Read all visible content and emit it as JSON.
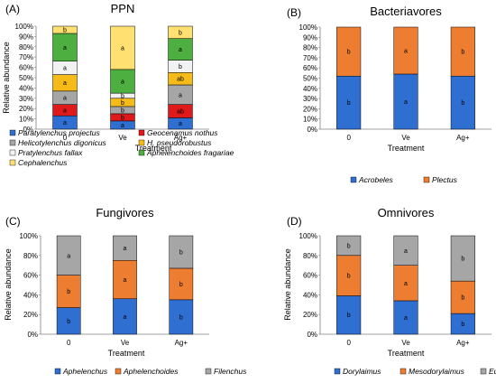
{
  "chart_data": [
    {
      "id": "A",
      "panel_label": "(A)",
      "title": "PPN",
      "type": "bar",
      "stacked": true,
      "categories": [
        "0",
        "Ve",
        "Ag+"
      ],
      "xlabel": "Treatment",
      "ylabel": "Relative abundance",
      "ylim": [
        0,
        100
      ],
      "y_ticks": [
        "0%",
        "10%",
        "20%",
        "30%",
        "40%",
        "50%",
        "60%",
        "70%",
        "80%",
        "90%",
        "100%"
      ],
      "legend": "bottom",
      "series": [
        {
          "name": "Paratylenchus projectus",
          "color": "#2f6fd1",
          "values": [
            13,
            8,
            11
          ],
          "labels": [
            "a",
            "a",
            "a"
          ]
        },
        {
          "name": "Geocenamus  nothus",
          "color": "#e0191b",
          "values": [
            11,
            7,
            13
          ],
          "labels": [
            "a",
            "b",
            "ab"
          ]
        },
        {
          "name": "Helicotylenchus digonicus",
          "color": "#a6a6a6",
          "values": [
            13,
            7,
            19
          ],
          "labels": [
            "a",
            "b",
            "a"
          ]
        },
        {
          "name": "H. pseudorobustus",
          "color": "#f6bb19",
          "values": [
            16,
            8,
            12
          ],
          "labels": [
            "a",
            "b",
            "ab"
          ]
        },
        {
          "name": "Pratylenchus fallax",
          "color": "#f2f2f2",
          "values": [
            13,
            5,
            12
          ],
          "labels": [
            "a",
            "b",
            "b"
          ]
        },
        {
          "name": "Aphelenchoides fragariae",
          "color": "#4caf3f",
          "values": [
            27,
            23,
            21
          ],
          "labels": [
            "a",
            "a",
            "a"
          ]
        },
        {
          "name": "Cephalenchus",
          "color": "#ffe071",
          "values": [
            7,
            42,
            12
          ],
          "labels": [
            "b",
            "a",
            "b"
          ]
        }
      ]
    },
    {
      "id": "B",
      "panel_label": "(B)",
      "title": "Bacteriavores",
      "type": "bar",
      "stacked": true,
      "categories": [
        "0",
        "Ve",
        "Ag+"
      ],
      "xlabel": "Treatment",
      "ylabel": "",
      "ylim": [
        0,
        100
      ],
      "y_ticks": [
        "0%",
        "10%",
        "20%",
        "30%",
        "40%",
        "50%",
        "60%",
        "70%",
        "80%",
        "90%",
        "100%"
      ],
      "legend": "bottom",
      "series": [
        {
          "name": "Acrobeles",
          "color": "#2f6fd1",
          "values": [
            52,
            54,
            52
          ],
          "labels": [
            "b",
            "a",
            "b"
          ]
        },
        {
          "name": "Plectus",
          "color": "#ed7d31",
          "values": [
            48,
            46,
            48
          ],
          "labels": [
            "b",
            "a",
            "b"
          ]
        }
      ]
    },
    {
      "id": "C",
      "panel_label": "(C)",
      "title": "Fungivores",
      "type": "bar",
      "stacked": true,
      "categories": [
        "0",
        "Ve",
        "Ag+"
      ],
      "xlabel": "Treatment",
      "ylabel": "Relative abundance",
      "ylim": [
        0,
        100
      ],
      "y_ticks": [
        "0%",
        "20%",
        "40%",
        "60%",
        "80%",
        "100%"
      ],
      "legend": "bottom",
      "series": [
        {
          "name": "Aphelenchus",
          "color": "#2f6fd1",
          "values": [
            27,
            36,
            35
          ],
          "labels": [
            "b",
            "a",
            "b"
          ]
        },
        {
          "name": "Aphelenchoides",
          "color": "#ed7d31",
          "values": [
            33,
            39,
            32
          ],
          "labels": [
            "b",
            "a",
            "b"
          ]
        },
        {
          "name": "Filenchus",
          "color": "#a6a6a6",
          "values": [
            40,
            25,
            33
          ],
          "labels": [
            "a",
            "a",
            "b"
          ]
        }
      ]
    },
    {
      "id": "D",
      "panel_label": "(D)",
      "title": "Omnivores",
      "type": "bar",
      "stacked": true,
      "categories": [
        "0",
        "Ve",
        "Ag+"
      ],
      "xlabel": "Treatment",
      "ylabel": "Relative abundance",
      "ylim": [
        0,
        100
      ],
      "y_ticks": [
        "0%",
        "20%",
        "40%",
        "60%",
        "80%",
        "100%"
      ],
      "legend": "bottom",
      "series": [
        {
          "name": "Dorylaimus",
          "color": "#2f6fd1",
          "values": [
            39,
            34,
            21
          ],
          "labels": [
            "b",
            "a",
            "b"
          ]
        },
        {
          "name": "Mesodorylaimus",
          "color": "#ed7d31",
          "values": [
            41,
            36,
            33
          ],
          "labels": [
            "b",
            "a",
            "b"
          ]
        },
        {
          "name": "Eudorylaimus",
          "color": "#a6a6a6",
          "values": [
            20,
            30,
            46
          ],
          "labels": [
            "b",
            "a",
            "b"
          ]
        }
      ]
    }
  ]
}
